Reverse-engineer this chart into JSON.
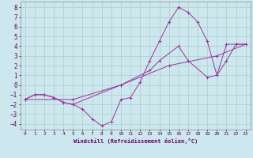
{
  "title": "",
  "xlabel": "Windchill (Refroidissement éolien,°C)",
  "ylabel": "",
  "background_color": "#cce8ee",
  "grid_color": "#aacccc",
  "line_color": "#993399",
  "xlim": [
    -0.5,
    23.5
  ],
  "ylim": [
    -4.6,
    8.6
  ],
  "xticks": [
    0,
    1,
    2,
    3,
    4,
    5,
    6,
    7,
    8,
    9,
    10,
    11,
    12,
    13,
    14,
    15,
    16,
    17,
    18,
    19,
    20,
    21,
    22,
    23
  ],
  "yticks": [
    -4,
    -3,
    -2,
    -1,
    0,
    1,
    2,
    3,
    4,
    5,
    6,
    7,
    8
  ],
  "series": [
    {
      "x": [
        0,
        1,
        2,
        3,
        4,
        5,
        6,
        7,
        8,
        9,
        10,
        11,
        12,
        13,
        14,
        15,
        16,
        17,
        18,
        19,
        20,
        21,
        22,
        23
      ],
      "y": [
        -1.5,
        -1.0,
        -1.0,
        -1.3,
        -1.8,
        -2.0,
        -2.5,
        -3.5,
        -4.2,
        -3.8,
        -1.5,
        -1.3,
        0.3,
        2.5,
        4.5,
        6.5,
        8.0,
        7.5,
        6.5,
        4.5,
        1.0,
        2.5,
        4.2,
        4.2
      ]
    },
    {
      "x": [
        0,
        1,
        2,
        3,
        4,
        5,
        10,
        13,
        14,
        16,
        17,
        19,
        20,
        21,
        22,
        23
      ],
      "y": [
        -1.5,
        -1.0,
        -1.0,
        -1.3,
        -1.8,
        -2.0,
        0.0,
        1.5,
        2.5,
        4.0,
        2.5,
        0.8,
        1.0,
        4.2,
        4.2,
        4.2
      ]
    },
    {
      "x": [
        0,
        5,
        10,
        15,
        20,
        23
      ],
      "y": [
        -1.5,
        -1.5,
        0.0,
        2.0,
        3.0,
        4.2
      ]
    }
  ]
}
